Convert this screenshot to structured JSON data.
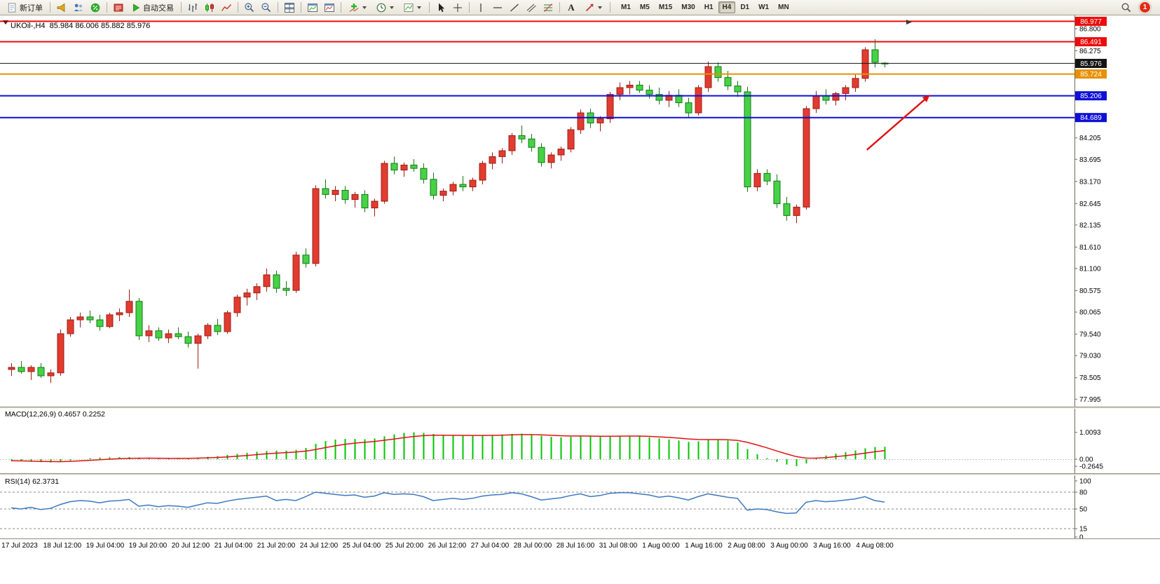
{
  "toolbar": {
    "new_order_label": "新订单",
    "auto_trading_label": "自动交易",
    "text_tool_glyph": "A",
    "timeframes": [
      "M1",
      "M5",
      "M15",
      "M30",
      "H1",
      "H4",
      "D1",
      "W1",
      "MN"
    ],
    "active_timeframe": "H4",
    "notification_badge": "1"
  },
  "chart": {
    "title_line": "UKOil-,H4  85.984 86.006 85.882 85.976",
    "macd_label": "MACD(12,26,9) 0.4657 0.2252",
    "rsi_label": "RSI(14) 62.3731"
  },
  "chart_data": {
    "type": "candlestick",
    "symbol": "UKOil-",
    "timeframe": "H4",
    "current_bar": {
      "open": 85.984,
      "high": 86.006,
      "low": 85.882,
      "close": 85.976
    },
    "up_color": "#e23b30",
    "up_stroke": "#9c1d14",
    "down_color": "#46d246",
    "down_stroke": "#127a12",
    "price_axis": {
      "min": 77.85,
      "max": 87.05,
      "ticks": [
        "86.800",
        "86.275",
        "84.205",
        "83.695",
        "83.170",
        "82.645",
        "82.135",
        "81.610",
        "81.100",
        "80.575",
        "80.065",
        "79.540",
        "79.030",
        "78.505",
        "77.995"
      ]
    },
    "hlines": [
      {
        "price": 86.977,
        "label": "86.977",
        "color": "#ed0b0b",
        "width": 2
      },
      {
        "price": 86.491,
        "label": "86.491",
        "color": "#ed0b0b",
        "width": 2
      },
      {
        "price": 85.976,
        "label": "85.976",
        "color": "#141414",
        "width": 1
      },
      {
        "price": 85.724,
        "label": "85.724",
        "color": "#e89000",
        "width": 2
      },
      {
        "price": 85.206,
        "label": "85.206",
        "color": "#0f0fd6",
        "width": 2
      },
      {
        "price": 84.689,
        "label": "84.689",
        "color": "#0f0fd6",
        "width": 2
      }
    ],
    "arrow": {
      "from_bar": 87.2,
      "from_price": 83.92,
      "to_bar": 93.6,
      "to_price": 85.22,
      "color": "#e01212"
    },
    "time_labels": [
      "17 Jul 2023",
      "18 Jul 12:00",
      "19 Jul 04:00",
      "19 Jul 20:00",
      "20 Jul 12:00",
      "21 Jul 04:00",
      "21 Jul 20:00",
      "24 Jul 12:00",
      "25 Jul 04:00",
      "25 Jul 20:00",
      "26 Jul 12:00",
      "27 Jul 04:00",
      "28 Jul 00:00",
      "28 Jul 16:00",
      "31 Jul 08:00",
      "1 Aug 00:00",
      "1 Aug 16:00",
      "2 Aug 08:00",
      "3 Aug 00:00",
      "3 Aug 16:00",
      "4 Aug 08:00"
    ],
    "candles": [
      [
        78.7,
        78.85,
        78.55,
        78.75
      ],
      [
        78.75,
        78.9,
        78.6,
        78.65
      ],
      [
        78.65,
        78.8,
        78.45,
        78.75
      ],
      [
        78.75,
        78.85,
        78.5,
        78.55
      ],
      [
        78.55,
        78.7,
        78.38,
        78.62
      ],
      [
        78.62,
        79.65,
        78.55,
        79.55
      ],
      [
        79.55,
        79.95,
        79.48,
        79.88
      ],
      [
        79.88,
        80.05,
        79.7,
        79.95
      ],
      [
        79.95,
        80.1,
        79.8,
        79.88
      ],
      [
        79.88,
        80.0,
        79.62,
        79.72
      ],
      [
        79.72,
        80.05,
        79.68,
        80.0
      ],
      [
        80.0,
        80.15,
        79.85,
        80.05
      ],
      [
        80.05,
        80.6,
        79.95,
        80.32
      ],
      [
        80.32,
        80.4,
        79.4,
        79.5
      ],
      [
        79.5,
        79.75,
        79.35,
        79.62
      ],
      [
        79.62,
        79.7,
        79.38,
        79.45
      ],
      [
        79.45,
        79.65,
        79.33,
        79.55
      ],
      [
        79.55,
        79.7,
        79.42,
        79.48
      ],
      [
        79.48,
        79.6,
        79.22,
        79.32
      ],
      [
        79.32,
        79.55,
        78.72,
        79.5
      ],
      [
        79.5,
        79.8,
        79.42,
        79.75
      ],
      [
        79.75,
        79.9,
        79.52,
        79.6
      ],
      [
        79.6,
        80.1,
        79.55,
        80.05
      ],
      [
        80.05,
        80.48,
        79.95,
        80.42
      ],
      [
        80.42,
        80.62,
        80.22,
        80.52
      ],
      [
        80.52,
        80.75,
        80.35,
        80.67
      ],
      [
        80.67,
        81.1,
        80.55,
        80.95
      ],
      [
        80.95,
        81.05,
        80.52,
        80.63
      ],
      [
        80.63,
        80.8,
        80.45,
        80.58
      ],
      [
        80.58,
        81.5,
        80.52,
        81.42
      ],
      [
        81.42,
        81.58,
        81.12,
        81.22
      ],
      [
        81.22,
        83.08,
        81.15,
        83.0
      ],
      [
        83.0,
        83.22,
        82.76,
        82.86
      ],
      [
        82.86,
        83.06,
        82.7,
        82.96
      ],
      [
        82.96,
        83.06,
        82.64,
        82.74
      ],
      [
        82.74,
        82.92,
        82.55,
        82.86
      ],
      [
        82.86,
        82.96,
        82.44,
        82.54
      ],
      [
        82.54,
        82.76,
        82.34,
        82.7
      ],
      [
        82.7,
        83.66,
        82.64,
        83.6
      ],
      [
        83.6,
        83.76,
        83.34,
        83.44
      ],
      [
        83.44,
        83.62,
        83.28,
        83.56
      ],
      [
        83.56,
        83.7,
        83.4,
        83.48
      ],
      [
        83.48,
        83.6,
        83.12,
        83.22
      ],
      [
        83.22,
        83.38,
        82.74,
        82.84
      ],
      [
        82.84,
        83.0,
        82.7,
        82.94
      ],
      [
        82.94,
        83.16,
        82.84,
        83.1
      ],
      [
        83.1,
        83.3,
        82.94,
        83.04
      ],
      [
        83.04,
        83.26,
        82.94,
        83.2
      ],
      [
        83.2,
        83.66,
        83.1,
        83.6
      ],
      [
        83.6,
        83.86,
        83.46,
        83.76
      ],
      [
        83.76,
        83.96,
        83.6,
        83.9
      ],
      [
        83.9,
        84.32,
        83.8,
        84.26
      ],
      [
        84.26,
        84.5,
        84.08,
        84.18
      ],
      [
        84.18,
        84.3,
        83.88,
        83.98
      ],
      [
        83.98,
        84.08,
        83.52,
        83.62
      ],
      [
        83.62,
        83.86,
        83.48,
        83.8
      ],
      [
        83.8,
        84.0,
        83.66,
        83.94
      ],
      [
        83.94,
        84.46,
        83.86,
        84.4
      ],
      [
        84.4,
        84.88,
        84.3,
        84.8
      ],
      [
        84.8,
        84.9,
        84.44,
        84.56
      ],
      [
        84.56,
        84.72,
        84.36,
        84.66
      ],
      [
        84.66,
        85.3,
        84.56,
        85.24
      ],
      [
        85.24,
        85.52,
        85.1,
        85.4
      ],
      [
        85.4,
        85.56,
        85.24,
        85.46
      ],
      [
        85.46,
        85.56,
        85.28,
        85.34
      ],
      [
        85.34,
        85.46,
        85.14,
        85.24
      ],
      [
        85.24,
        85.4,
        85.0,
        85.1
      ],
      [
        85.1,
        85.32,
        84.94,
        85.22
      ],
      [
        85.22,
        85.36,
        84.94,
        85.04
      ],
      [
        85.04,
        85.16,
        84.68,
        84.8
      ],
      [
        84.8,
        85.46,
        84.74,
        85.4
      ],
      [
        85.4,
        86.02,
        85.3,
        85.9
      ],
      [
        85.9,
        86.0,
        85.54,
        85.64
      ],
      [
        85.64,
        85.8,
        85.34,
        85.44
      ],
      [
        85.44,
        85.56,
        85.18,
        85.3
      ],
      [
        85.3,
        85.42,
        82.92,
        83.04
      ],
      [
        83.04,
        83.46,
        82.94,
        83.36
      ],
      [
        83.36,
        83.46,
        83.08,
        83.18
      ],
      [
        83.18,
        83.34,
        82.54,
        82.64
      ],
      [
        82.64,
        82.8,
        82.24,
        82.36
      ],
      [
        82.36,
        82.62,
        82.18,
        82.56
      ],
      [
        82.56,
        84.96,
        82.5,
        84.9
      ],
      [
        84.9,
        85.32,
        84.8,
        85.2
      ],
      [
        85.2,
        85.36,
        85.0,
        85.1
      ],
      [
        85.1,
        85.3,
        84.98,
        85.26
      ],
      [
        85.26,
        85.46,
        85.1,
        85.4
      ],
      [
        85.4,
        85.72,
        85.3,
        85.62
      ],
      [
        85.62,
        86.36,
        85.54,
        86.3
      ],
      [
        86.3,
        86.55,
        85.88,
        86.0
      ],
      [
        85.984,
        86.006,
        85.882,
        85.976
      ]
    ],
    "macd": {
      "params": "12,26,9",
      "main_value": 0.4657,
      "signal_value": 0.2252,
      "histogram_color": "#00c400",
      "signal_color": "#e01212",
      "scale_ticks": [
        "1.0093",
        "0.00",
        "-0.2645"
      ],
      "scale_values": [
        1.0093,
        0,
        -0.2645
      ],
      "histogram": [
        -0.06,
        -0.08,
        -0.1,
        -0.11,
        -0.12,
        -0.1,
        -0.05,
        0.0,
        0.04,
        0.06,
        0.07,
        0.08,
        0.08,
        0.06,
        0.04,
        0.03,
        0.03,
        0.03,
        0.04,
        0.06,
        0.09,
        0.12,
        0.16,
        0.2,
        0.24,
        0.28,
        0.31,
        0.32,
        0.32,
        0.35,
        0.42,
        0.58,
        0.68,
        0.74,
        0.76,
        0.76,
        0.75,
        0.78,
        0.86,
        0.93,
        0.99,
        1.01,
        0.99,
        0.95,
        0.91,
        0.89,
        0.88,
        0.88,
        0.89,
        0.91,
        0.93,
        0.95,
        0.96,
        0.93,
        0.88,
        0.84,
        0.82,
        0.84,
        0.87,
        0.86,
        0.84,
        0.86,
        0.88,
        0.88,
        0.86,
        0.82,
        0.78,
        0.74,
        0.7,
        0.65,
        0.67,
        0.72,
        0.74,
        0.7,
        0.63,
        0.38,
        0.19,
        0.04,
        -0.1,
        -0.2,
        -0.26,
        -0.16,
        0.03,
        0.14,
        0.21,
        0.27,
        0.33,
        0.41,
        0.46,
        0.4657
      ]
    },
    "rsi": {
      "period": 14,
      "value": 62.3731,
      "line_color": "#3c78c0",
      "levels": [
        80,
        50,
        15
      ],
      "scale_labels": [
        {
          "v": 100,
          "t": "100"
        },
        {
          "v": 80,
          "t": "80"
        },
        {
          "v": 50,
          "t": "50"
        },
        {
          "v": 15,
          "t": "15"
        },
        {
          "v": 0,
          "t": "0"
        }
      ],
      "values": [
        52,
        50,
        53,
        49,
        51,
        58,
        63,
        65,
        64,
        61,
        64,
        65,
        67,
        55,
        57,
        54,
        56,
        55,
        53,
        57,
        61,
        60,
        64,
        67,
        69,
        71,
        73,
        65,
        67,
        65,
        72,
        80,
        78,
        76,
        74,
        75,
        71,
        73,
        79,
        76,
        77,
        76,
        72,
        65,
        67,
        69,
        67,
        69,
        73,
        75,
        76,
        79,
        77,
        72,
        66,
        68,
        70,
        74,
        77,
        72,
        74,
        78,
        79,
        79,
        77,
        75,
        71,
        73,
        70,
        66,
        72,
        77,
        74,
        71,
        69,
        48,
        50,
        49,
        45,
        42,
        43,
        62,
        65,
        63,
        64,
        66,
        68,
        72,
        65,
        62.37
      ]
    }
  }
}
